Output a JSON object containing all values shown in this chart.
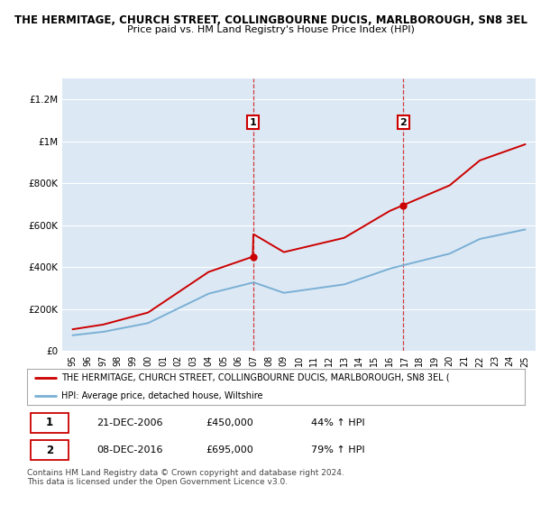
{
  "title": "THE HERMITAGE, CHURCH STREET, COLLINGBOURNE DUCIS, MARLBOROUGH, SN8 3EL",
  "subtitle": "Price paid vs. HM Land Registry's House Price Index (HPI)",
  "background_color": "#dce9f5",
  "ylim": [
    0,
    1300000
  ],
  "yticks": [
    0,
    200000,
    400000,
    600000,
    800000,
    1000000,
    1200000
  ],
  "ytick_labels": [
    "£0",
    "£200K",
    "£400K",
    "£600K",
    "£800K",
    "£1M",
    "£1.2M"
  ],
  "x_start_year": 1995,
  "x_end_year": 2025,
  "sale1_year": 2006.96,
  "sale1_price": 450000,
  "sale1_label": "1",
  "sale2_year": 2016.92,
  "sale2_price": 695000,
  "sale2_label": "2",
  "red_line_color": "#cc0000",
  "blue_line_color": "#7aafd4",
  "vline_color": "#cc0000",
  "legend_label_red": "THE HERMITAGE, CHURCH STREET, COLLINGBOURNE DUCIS, MARLBOROUGH, SN8 3EL (",
  "legend_label_blue": "HPI: Average price, detached house, Wiltshire",
  "table_row1": [
    "1",
    "21-DEC-2006",
    "£450,000",
    "44% ↑ HPI"
  ],
  "table_row2": [
    "2",
    "08-DEC-2016",
    "£695,000",
    "79% ↑ HPI"
  ],
  "footnote": "Contains HM Land Registry data © Crown copyright and database right 2024.\nThis data is licensed under the Open Government Licence v3.0.",
  "title_fontsize": 8.5,
  "subtitle_fontsize": 8.0,
  "axis_fontsize": 7.5,
  "legend_fontsize": 7.5,
  "table_fontsize": 8.0
}
